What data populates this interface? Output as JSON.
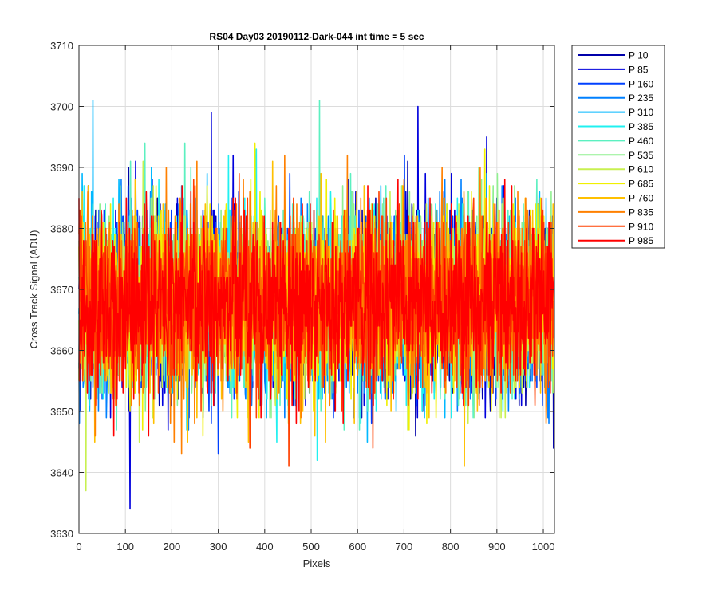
{
  "chart_data": {
    "type": "line",
    "title": "RS04 Day03 20190112-Dark-044 int time = 5 sec",
    "xlabel": "Pixels",
    "ylabel": "Cross Track Signal (ADU)",
    "xlim": [
      0,
      1024
    ],
    "ylim": [
      3630,
      3710
    ],
    "xticks": [
      "0",
      "100",
      "200",
      "300",
      "400",
      "500",
      "600",
      "700",
      "800",
      "900",
      "1000"
    ],
    "yticks": [
      "3630",
      "3640",
      "3650",
      "3660",
      "3670",
      "3680",
      "3690",
      "3700",
      "3710"
    ],
    "grid": true,
    "legend_position": "outside-top-right",
    "n_points": 1024,
    "signal_mean": 3668,
    "typical_range": [
      3650,
      3688
    ],
    "series": [
      {
        "name": "P 10",
        "color": "#0000aa"
      },
      {
        "name": "P 85",
        "color": "#0000dd"
      },
      {
        "name": "P 160",
        "color": "#0040ff"
      },
      {
        "name": "P 235",
        "color": "#0080ff"
      },
      {
        "name": "P 310",
        "color": "#00b8ff"
      },
      {
        "name": "P 385",
        "color": "#20f0f0"
      },
      {
        "name": "P 460",
        "color": "#5cf0c0"
      },
      {
        "name": "P 535",
        "color": "#90f090"
      },
      {
        "name": "P 610",
        "color": "#c8f050"
      },
      {
        "name": "P 685",
        "color": "#f0f000"
      },
      {
        "name": "P 760",
        "color": "#ffc000"
      },
      {
        "name": "P 835",
        "color": "#ff8000"
      },
      {
        "name": "P 910",
        "color": "#ff4000"
      },
      {
        "name": "P 985",
        "color": "#ff0000"
      }
    ],
    "extremes": [
      {
        "series": "P 85",
        "x": 285,
        "y": 3699
      },
      {
        "series": "P 85",
        "x": 730,
        "y": 3700
      },
      {
        "series": "P 310",
        "x": 30,
        "y": 3701
      },
      {
        "series": "P 460",
        "x": 518,
        "y": 3701
      },
      {
        "series": "P 85",
        "x": 110,
        "y": 3634
      },
      {
        "series": "P 610",
        "x": 15,
        "y": 3637
      },
      {
        "series": "P 760",
        "x": 830,
        "y": 3641
      }
    ]
  }
}
